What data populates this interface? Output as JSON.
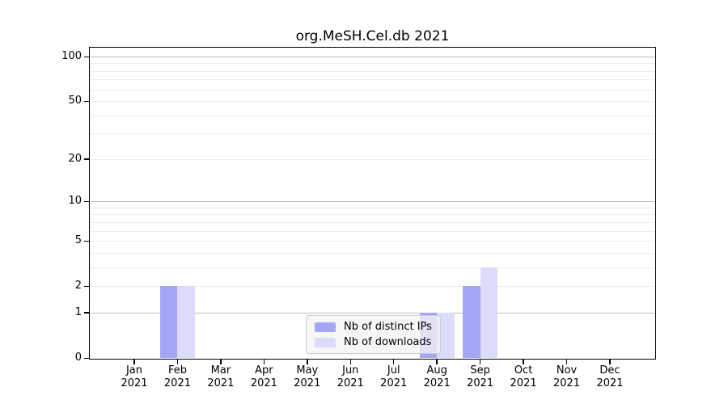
{
  "title": "org.MeSH.Cel.db 2021",
  "legend": {
    "items": [
      {
        "label": "Nb of distinct IPs",
        "color": "#a6a6f6"
      },
      {
        "label": "Nb of downloads",
        "color": "#dcdcfa"
      }
    ]
  },
  "chart_data": {
    "type": "bar",
    "title": "org.MeSH.Cel.db 2021",
    "scale": "log1p",
    "categories": [
      "Jan",
      "Feb",
      "Mar",
      "Apr",
      "May",
      "Jun",
      "Jul",
      "Aug",
      "Sep",
      "Oct",
      "Nov",
      "Dec"
    ],
    "year": "2021",
    "series": [
      {
        "name": "Nb of distinct IPs",
        "color": "#a6a6f6",
        "values": [
          0,
          2,
          0,
          0,
          0,
          0,
          0,
          1,
          2,
          0,
          0,
          0
        ]
      },
      {
        "name": "Nb of downloads",
        "color": "#dcdcfa",
        "values": [
          0,
          2,
          0,
          0,
          0,
          0,
          0,
          1,
          3,
          0,
          0,
          0
        ]
      }
    ],
    "yticks": [
      0,
      1,
      2,
      5,
      10,
      20,
      50,
      100
    ],
    "ylim": [
      0,
      115
    ],
    "gridlines": {
      "minor": [
        2,
        3,
        4,
        5,
        6,
        7,
        8,
        9,
        20,
        30,
        40,
        50,
        60,
        70,
        80,
        90
      ],
      "decade": [
        1,
        10,
        100
      ]
    },
    "grid_colors": {
      "minor": "#ececec",
      "decade": "#bbbbbb"
    },
    "legend_position": "lower center",
    "xlabel": "",
    "ylabel": ""
  }
}
